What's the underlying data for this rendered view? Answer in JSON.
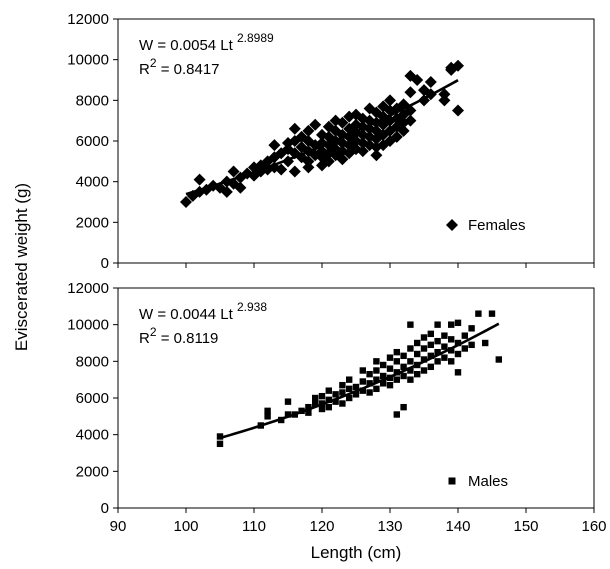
{
  "chart_data": {
    "type": "scatter",
    "xlabel": "Length (cm)",
    "ylabel": "Eviscerated weight (g)",
    "xlim": [
      90,
      160
    ],
    "xticks": [
      "90",
      "100",
      "110",
      "120",
      "130",
      "140",
      "150",
      "160"
    ],
    "ylim": [
      0,
      12000
    ],
    "yticks": [
      "0",
      "2000",
      "4000",
      "6000",
      "8000",
      "10000",
      "12000"
    ],
    "grid": false,
    "legend_position": "bottom-right",
    "panels": [
      {
        "id": "females",
        "equation": {
          "prefix": "W = 0.0054 Lt",
          "exponent": "2.8989",
          "r2_prefix": "R",
          "r2_sup": "2",
          "r2_value": " = 0.8417"
        },
        "series": [
          {
            "name": "Females",
            "marker": "diamond",
            "fit": {
              "a": 0.0054,
              "b": 2.8989,
              "x_range": [
                100,
                140
              ]
            },
            "points": [
              [
                100,
                3000
              ],
              [
                101,
                3300
              ],
              [
                102,
                3500
              ],
              [
                102,
                4100
              ],
              [
                103,
                3600
              ],
              [
                104,
                3800
              ],
              [
                105,
                3700
              ],
              [
                106,
                3500
              ],
              [
                106,
                4000
              ],
              [
                107,
                3900
              ],
              [
                107,
                4500
              ],
              [
                108,
                4200
              ],
              [
                108,
                3700
              ],
              [
                109,
                4400
              ],
              [
                110,
                4300
              ],
              [
                110,
                4700
              ],
              [
                111,
                4500
              ],
              [
                111,
                4800
              ],
              [
                112,
                5000
              ],
              [
                112,
                4600
              ],
              [
                113,
                5200
              ],
              [
                113,
                4700
              ],
              [
                113,
                5800
              ],
              [
                114,
                5400
              ],
              [
                114,
                4600
              ],
              [
                115,
                5000
              ],
              [
                115,
                5600
              ],
              [
                115,
                5900
              ],
              [
                116,
                4500
              ],
              [
                116,
                5400
              ],
              [
                116,
                6000
              ],
              [
                116,
                6600
              ],
              [
                117,
                5200
              ],
              [
                117,
                5700
              ],
              [
                117,
                6200
              ],
              [
                118,
                4700
              ],
              [
                118,
                5000
              ],
              [
                118,
                5500
              ],
              [
                118,
                6000
              ],
              [
                118,
                6500
              ],
              [
                119,
                5300
              ],
              [
                119,
                5800
              ],
              [
                119,
                6800
              ],
              [
                120,
                4800
              ],
              [
                120,
                5200
              ],
              [
                120,
                5500
              ],
              [
                120,
                5900
              ],
              [
                120,
                6300
              ],
              [
                121,
                5000
              ],
              [
                121,
                5400
              ],
              [
                121,
                5800
              ],
              [
                121,
                6200
              ],
              [
                121,
                6700
              ],
              [
                122,
                5300
              ],
              [
                122,
                5600
              ],
              [
                122,
                6000
              ],
              [
                122,
                6500
              ],
              [
                122,
                7000
              ],
              [
                123,
                5100
              ],
              [
                123,
                5500
              ],
              [
                123,
                5900
              ],
              [
                123,
                6300
              ],
              [
                123,
                6900
              ],
              [
                124,
                5400
              ],
              [
                124,
                5800
              ],
              [
                124,
                6200
              ],
              [
                124,
                6600
              ],
              [
                124,
                7200
              ],
              [
                125,
                5600
              ],
              [
                125,
                6000
              ],
              [
                125,
                6400
              ],
              [
                125,
                6800
              ],
              [
                125,
                7300
              ],
              [
                126,
                5500
              ],
              [
                126,
                5900
              ],
              [
                126,
                6300
              ],
              [
                126,
                6700
              ],
              [
                126,
                7100
              ],
              [
                127,
                5800
              ],
              [
                127,
                6200
              ],
              [
                127,
                6600
              ],
              [
                127,
                7000
              ],
              [
                127,
                7600
              ],
              [
                128,
                5300
              ],
              [
                128,
                5700
              ],
              [
                128,
                6100
              ],
              [
                128,
                6500
              ],
              [
                128,
                6900
              ],
              [
                128,
                7400
              ],
              [
                129,
                5800
              ],
              [
                129,
                6300
              ],
              [
                129,
                6800
              ],
              [
                129,
                7200
              ],
              [
                129,
                7700
              ],
              [
                130,
                6000
              ],
              [
                130,
                6500
              ],
              [
                130,
                7000
              ],
              [
                130,
                7500
              ],
              [
                130,
                8000
              ],
              [
                131,
                6200
              ],
              [
                131,
                6700
              ],
              [
                131,
                7100
              ],
              [
                131,
                7600
              ],
              [
                132,
                6500
              ],
              [
                132,
                6900
              ],
              [
                132,
                7300
              ],
              [
                132,
                7800
              ],
              [
                133,
                7000
              ],
              [
                133,
                7500
              ],
              [
                133,
                8400
              ],
              [
                133,
                9200
              ],
              [
                134,
                9000
              ],
              [
                135,
                8000
              ],
              [
                135,
                8500
              ],
              [
                136,
                8300
              ],
              [
                136,
                8900
              ],
              [
                138,
                8000
              ],
              [
                138,
                8300
              ],
              [
                139,
                9500
              ],
              [
                139,
                9600
              ],
              [
                140,
                9700
              ],
              [
                140,
                7500
              ]
            ]
          }
        ]
      },
      {
        "id": "males",
        "equation": {
          "prefix": "W = 0.0044 Lt",
          "exponent": "2.938",
          "r2_prefix": "R",
          "r2_sup": "2",
          "r2_value": " = 0.8119"
        },
        "series": [
          {
            "name": "Males",
            "marker": "square",
            "fit": {
              "a": 0.0044,
              "b": 2.938,
              "x_range": [
                105,
                146
              ]
            },
            "points": [
              [
                105,
                3500
              ],
              [
                105,
                3900
              ],
              [
                111,
                4500
              ],
              [
                112,
                5000
              ],
              [
                112,
                5300
              ],
              [
                114,
                4800
              ],
              [
                115,
                5100
              ],
              [
                115,
                5800
              ],
              [
                116,
                5100
              ],
              [
                117,
                5300
              ],
              [
                118,
                5500
              ],
              [
                118,
                5200
              ],
              [
                119,
                5700
              ],
              [
                119,
                6000
              ],
              [
                120,
                5400
              ],
              [
                120,
                5700
              ],
              [
                120,
                6100
              ],
              [
                121,
                5500
              ],
              [
                121,
                5900
              ],
              [
                121,
                6400
              ],
              [
                122,
                5800
              ],
              [
                122,
                6200
              ],
              [
                123,
                5700
              ],
              [
                123,
                6300
              ],
              [
                123,
                6700
              ],
              [
                124,
                6000
              ],
              [
                124,
                6500
              ],
              [
                124,
                7000
              ],
              [
                125,
                6200
              ],
              [
                125,
                6600
              ],
              [
                126,
                6400
              ],
              [
                126,
                6900
              ],
              [
                126,
                7500
              ],
              [
                127,
                6300
              ],
              [
                127,
                6800
              ],
              [
                127,
                7300
              ],
              [
                128,
                6500
              ],
              [
                128,
                7000
              ],
              [
                128,
                7500
              ],
              [
                128,
                8000
              ],
              [
                129,
                6800
              ],
              [
                129,
                7200
              ],
              [
                129,
                7800
              ],
              [
                130,
                6700
              ],
              [
                130,
                7100
              ],
              [
                130,
                7600
              ],
              [
                130,
                8200
              ],
              [
                131,
                5100
              ],
              [
                131,
                7000
              ],
              [
                131,
                7400
              ],
              [
                131,
                8000
              ],
              [
                131,
                8500
              ],
              [
                132,
                5500
              ],
              [
                132,
                7200
              ],
              [
                132,
                7700
              ],
              [
                132,
                8300
              ],
              [
                133,
                7000
              ],
              [
                133,
                7500
              ],
              [
                133,
                8000
              ],
              [
                133,
                8700
              ],
              [
                133,
                10000
              ],
              [
                134,
                7300
              ],
              [
                134,
                7800
              ],
              [
                134,
                8400
              ],
              [
                134,
                9000
              ],
              [
                135,
                7500
              ],
              [
                135,
                8100
              ],
              [
                135,
                8700
              ],
              [
                135,
                9300
              ],
              [
                136,
                7700
              ],
              [
                136,
                8300
              ],
              [
                136,
                8900
              ],
              [
                136,
                9500
              ],
              [
                137,
                8000
              ],
              [
                137,
                8500
              ],
              [
                137,
                9100
              ],
              [
                137,
                10000
              ],
              [
                138,
                8200
              ],
              [
                138,
                8800
              ],
              [
                138,
                9400
              ],
              [
                139,
                8000
              ],
              [
                139,
                8600
              ],
              [
                139,
                9200
              ],
              [
                139,
                10000
              ],
              [
                140,
                7400
              ],
              [
                140,
                8400
              ],
              [
                140,
                9000
              ],
              [
                140,
                10100
              ],
              [
                141,
                8700
              ],
              [
                141,
                9400
              ],
              [
                142,
                8900
              ],
              [
                142,
                9800
              ],
              [
                143,
                10600
              ],
              [
                144,
                9000
              ],
              [
                145,
                10600
              ],
              [
                146,
                8100
              ]
            ]
          }
        ]
      }
    ]
  }
}
